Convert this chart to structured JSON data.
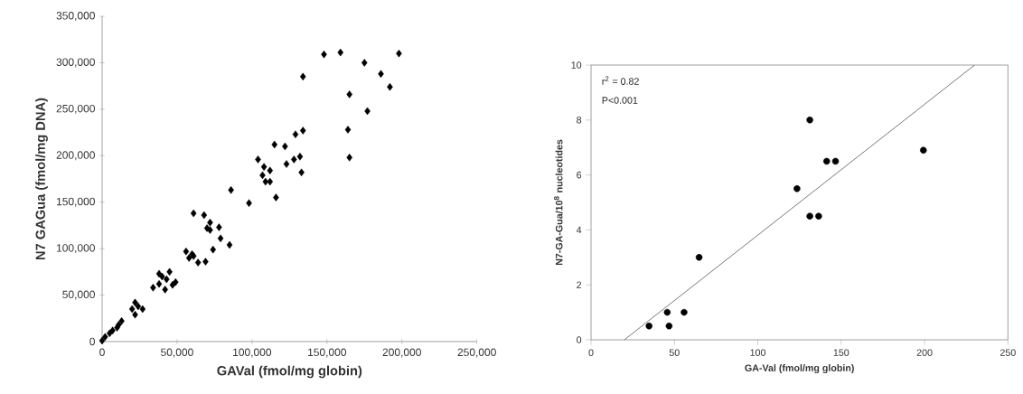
{
  "chart_data": [
    {
      "type": "scatter",
      "xlabel": "GAVal (fmol/mg globin)",
      "ylabel": "N7 GAGua (fmol/mg DNA)",
      "xlim": [
        0,
        250000
      ],
      "ylim": [
        0,
        350000
      ],
      "xticks": [
        0,
        {
          "value": 50000,
          "label": "50,000"
        },
        {
          "value": 100000,
          "label": "100,000"
        },
        {
          "value": 150000,
          "label": "150,000"
        },
        {
          "value": 200000,
          "label": "200,000"
        },
        {
          "value": 250000,
          "label": "250,000"
        }
      ],
      "yticks": [
        0,
        {
          "value": 50000,
          "label": "50,000"
        },
        {
          "value": 100000,
          "label": "100,000"
        },
        {
          "value": 150000,
          "label": "150,000"
        },
        {
          "value": 200000,
          "label": "200,000"
        },
        {
          "value": 250000,
          "label": "250,000"
        },
        {
          "value": 300000,
          "label": "300,000"
        },
        {
          "value": 350000,
          "label": "350,000"
        }
      ],
      "series": [
        {
          "type": "scatter",
          "marker": "diamond",
          "color": "#000000",
          "x": [
            148000,
            159000,
            198000,
            175000,
            186000,
            192000,
            134000,
            165000,
            177000,
            164000,
            165000,
            134000,
            129000,
            115000,
            122000,
            104000,
            108000,
            112000,
            107000,
            109000,
            112000,
            116000,
            123000,
            128000,
            132000,
            133000,
            86000,
            98000,
            61000,
            68000,
            72000,
            70000,
            72000,
            78000,
            79000,
            74000,
            85000,
            69000,
            64000,
            56000,
            58000,
            61000,
            60000,
            45000,
            38000,
            40000,
            43000,
            38000,
            34000,
            42000,
            49000,
            47000,
            22000,
            24000,
            27000,
            20000,
            22000,
            13000,
            11000,
            10000,
            7000,
            5000,
            2000,
            0
          ],
          "values": [
            309000,
            311000,
            310000,
            300000,
            288000,
            274000,
            285000,
            266000,
            248000,
            228000,
            198000,
            227000,
            223000,
            212000,
            210000,
            196000,
            188000,
            184000,
            179000,
            172000,
            172000,
            155000,
            191000,
            196000,
            199000,
            182000,
            163000,
            149000,
            138000,
            136000,
            128000,
            122000,
            120000,
            123000,
            111000,
            99000,
            104000,
            86000,
            85000,
            97000,
            90000,
            92000,
            94000,
            75000,
            73000,
            70000,
            67000,
            62000,
            58000,
            56000,
            64000,
            61000,
            42000,
            38000,
            35000,
            35000,
            29000,
            22000,
            18000,
            15000,
            12000,
            9000,
            5000,
            1000
          ]
        }
      ]
    },
    {
      "type": "scatter",
      "xlabel": "GA-Val (fmol/mg globin)",
      "ylabel": "N7-GA-Gua/10$^{8}$ nucleotides",
      "xlim": [
        0,
        250
      ],
      "ylim": [
        0,
        10
      ],
      "xticks": [
        0,
        50,
        100,
        150,
        200,
        250
      ],
      "yticks": [
        0,
        2,
        4,
        6,
        8,
        10
      ],
      "annotations": [
        "r$^{2}$ = 0.82",
        "P<0.001"
      ],
      "series": [
        {
          "type": "scatter",
          "marker": "circle",
          "color": "#000000",
          "x": [
            34.8,
            45.7,
            46.8,
            55.8,
            64.8,
            123.5,
            131.2,
            131.2,
            136.5,
            141.3,
            146.6,
            199.3
          ],
          "values": [
            0.5,
            1.0,
            0.5,
            1.0,
            3.0,
            5.5,
            8.0,
            4.5,
            4.5,
            6.5,
            6.5,
            6.9
          ]
        },
        {
          "type": "line",
          "marker": "none",
          "line_style": "solid",
          "color": "#000000",
          "x": [
            20,
            230
          ],
          "values": [
            0,
            10
          ]
        }
      ]
    }
  ]
}
